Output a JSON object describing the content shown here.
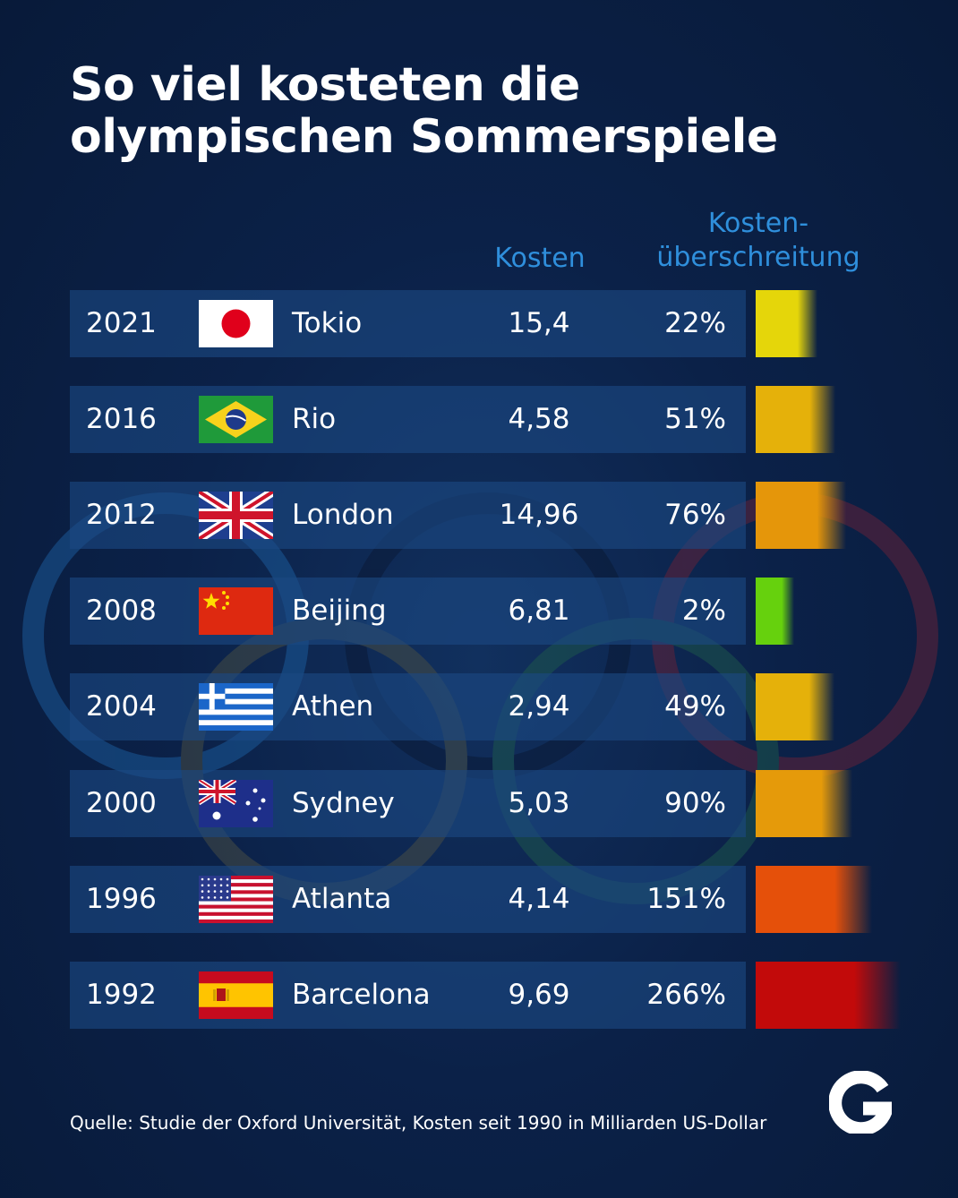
{
  "title_lines": [
    "So viel kosteten die",
    "olympischen Sommerspiele"
  ],
  "headers": {
    "cost": "Kosten",
    "overrun_line1": "Kosten-",
    "overrun_line2": "überschreitung"
  },
  "rows": [
    {
      "year": "2021",
      "city": "Tokio",
      "cost": "15,4",
      "overrun": "22%",
      "flag": "japan-flag",
      "bar_color": "#e5d60a"
    },
    {
      "year": "2016",
      "city": "Rio",
      "cost": "4,58",
      "overrun": "51%",
      "flag": "brazil-flag",
      "bar_color": "#e5b10a"
    },
    {
      "year": "2012",
      "city": "London",
      "cost": "14,96",
      "overrun": "76%",
      "flag": "uk-flag",
      "bar_color": "#e5960a"
    },
    {
      "year": "2008",
      "city": "Beijing",
      "cost": "6,81",
      "overrun": "2%",
      "flag": "china-flag",
      "bar_color": "#66d10d"
    },
    {
      "year": "2004",
      "city": "Athen",
      "cost": "2,94",
      "overrun": "49%",
      "flag": "greece-flag",
      "bar_color": "#e5b10a"
    },
    {
      "year": "2000",
      "city": "Sydney",
      "cost": "5,03",
      "overrun": "90%",
      "flag": "australia-flag",
      "bar_color": "#e59a0a"
    },
    {
      "year": "1996",
      "city": "Atlanta",
      "cost": "4,14",
      "overrun": "151%",
      "flag": "usa-flag",
      "bar_color": "#e5500a"
    },
    {
      "year": "1992",
      "city": "Barcelona",
      "cost": "9,69",
      "overrun": "266%",
      "flag": "spain-flag",
      "bar_color": "#c20a0a"
    }
  ],
  "chart_data": {
    "type": "table",
    "title": "So viel kosteten die olympischen Sommerspiele",
    "columns": [
      "",
      "",
      "Kosten",
      "Kosten-überschreitung"
    ],
    "categories": [
      "2021 Tokio",
      "2016 Rio",
      "2012 London",
      "2008 Beijing",
      "2004 Athen",
      "2000 Sydney",
      "1996 Atlanta",
      "1992 Barcelona"
    ],
    "series": [
      {
        "name": "Kosten",
        "values": [
          15.4,
          4.58,
          14.96,
          6.81,
          2.94,
          5.03,
          4.14,
          9.69
        ]
      },
      {
        "name": "Kosten-überschreitung",
        "values": [
          22,
          51,
          76,
          2,
          49,
          90,
          151,
          266
        ]
      }
    ]
  },
  "source": "Quelle: Studie der Oxford Universität, Kosten seit 1990 in Milliarden US-Dollar",
  "logo_icon": "galileo-g-logo-icon"
}
